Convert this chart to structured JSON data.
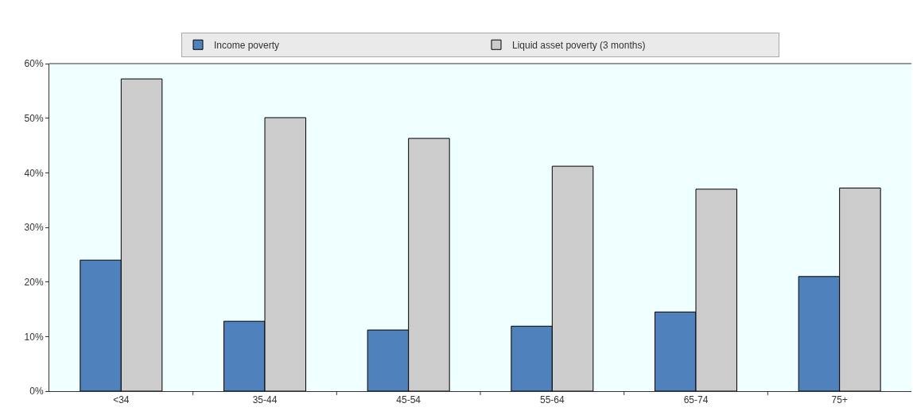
{
  "chart_data": {
    "type": "bar",
    "categories": [
      "<34",
      "35-44",
      "45-54",
      "55-64",
      "65-74",
      "75+"
    ],
    "series": [
      {
        "name": "Income poverty",
        "color": "#4f81bd",
        "values": [
          24,
          12.8,
          11.2,
          11.9,
          14.5,
          21.0
        ]
      },
      {
        "name": "Liquid asset poverty (3 months)",
        "color": "#cccccc",
        "values": [
          57.2,
          50.1,
          46.3,
          41.2,
          37.0,
          37.2
        ]
      }
    ],
    "ylim": [
      0,
      60
    ],
    "yticks": [
      {
        "value": 0,
        "label": "0%"
      },
      {
        "value": 10,
        "label": "10%"
      },
      {
        "value": 20,
        "label": "20%"
      },
      {
        "value": 30,
        "label": "30%"
      },
      {
        "value": 40,
        "label": "40%"
      },
      {
        "value": 50,
        "label": "50%"
      },
      {
        "value": 60,
        "label": "60%"
      }
    ],
    "legend": "top"
  }
}
